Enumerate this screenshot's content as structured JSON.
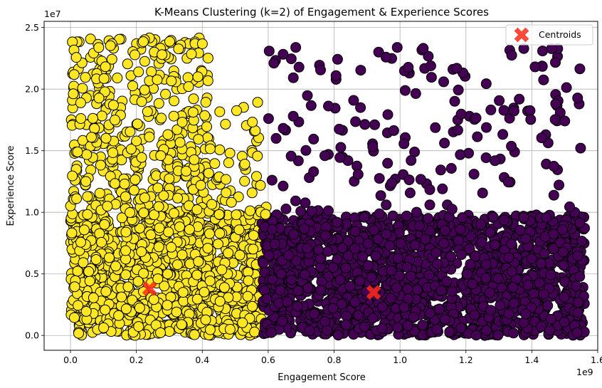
{
  "chart_data": {
    "type": "scatter",
    "title": "K-Means Clustering (k=2) of Engagement & Experience Scores",
    "xlabel": "Engagement Score",
    "ylabel": "Experience Score",
    "x_scale_label": "1e9",
    "y_scale_label": "1e7",
    "xlim": [
      -0.08,
      1.6
    ],
    "ylim": [
      -0.12,
      2.55
    ],
    "x_ticks": [
      {
        "value": 0.0,
        "label": "0.0"
      },
      {
        "value": 0.2,
        "label": "0.2"
      },
      {
        "value": 0.4,
        "label": "0.4"
      },
      {
        "value": 0.6,
        "label": "0.6"
      },
      {
        "value": 0.8,
        "label": "0.8"
      },
      {
        "value": 1.0,
        "label": "1.0"
      },
      {
        "value": 1.2,
        "label": "1.2"
      },
      {
        "value": 1.4,
        "label": "1.4"
      },
      {
        "value": 1.6,
        "label": "1.6"
      }
    ],
    "y_ticks": [
      {
        "value": 0.0,
        "label": "0.0"
      },
      {
        "value": 0.5,
        "label": "0.5"
      },
      {
        "value": 1.0,
        "label": "1.0"
      },
      {
        "value": 1.5,
        "label": "1.5"
      },
      {
        "value": 2.0,
        "label": "2.0"
      },
      {
        "value": 2.5,
        "label": "2.5"
      }
    ],
    "grid": true,
    "legend_position": "top-right",
    "clusters": [
      {
        "color": "#fde725",
        "dense_region": {
          "x": [
            0.0,
            0.58
          ],
          "y": [
            0.0,
            0.98
          ]
        },
        "sparse_region": {
          "x": [
            0.0,
            0.6
          ],
          "y": [
            0.98,
            2.42
          ]
        }
      },
      {
        "color": "#440154",
        "dense_region": {
          "x": [
            0.58,
            1.56
          ],
          "y": [
            0.0,
            0.98
          ]
        },
        "sparse_region": {
          "x": [
            0.6,
            1.56
          ],
          "y": [
            0.98,
            2.36
          ]
        }
      }
    ],
    "centroids": {
      "name": "Centroids",
      "color": "#ff2a1a",
      "points": [
        {
          "x": 0.24,
          "y": 0.38
        },
        {
          "x": 0.92,
          "y": 0.35
        }
      ]
    }
  }
}
